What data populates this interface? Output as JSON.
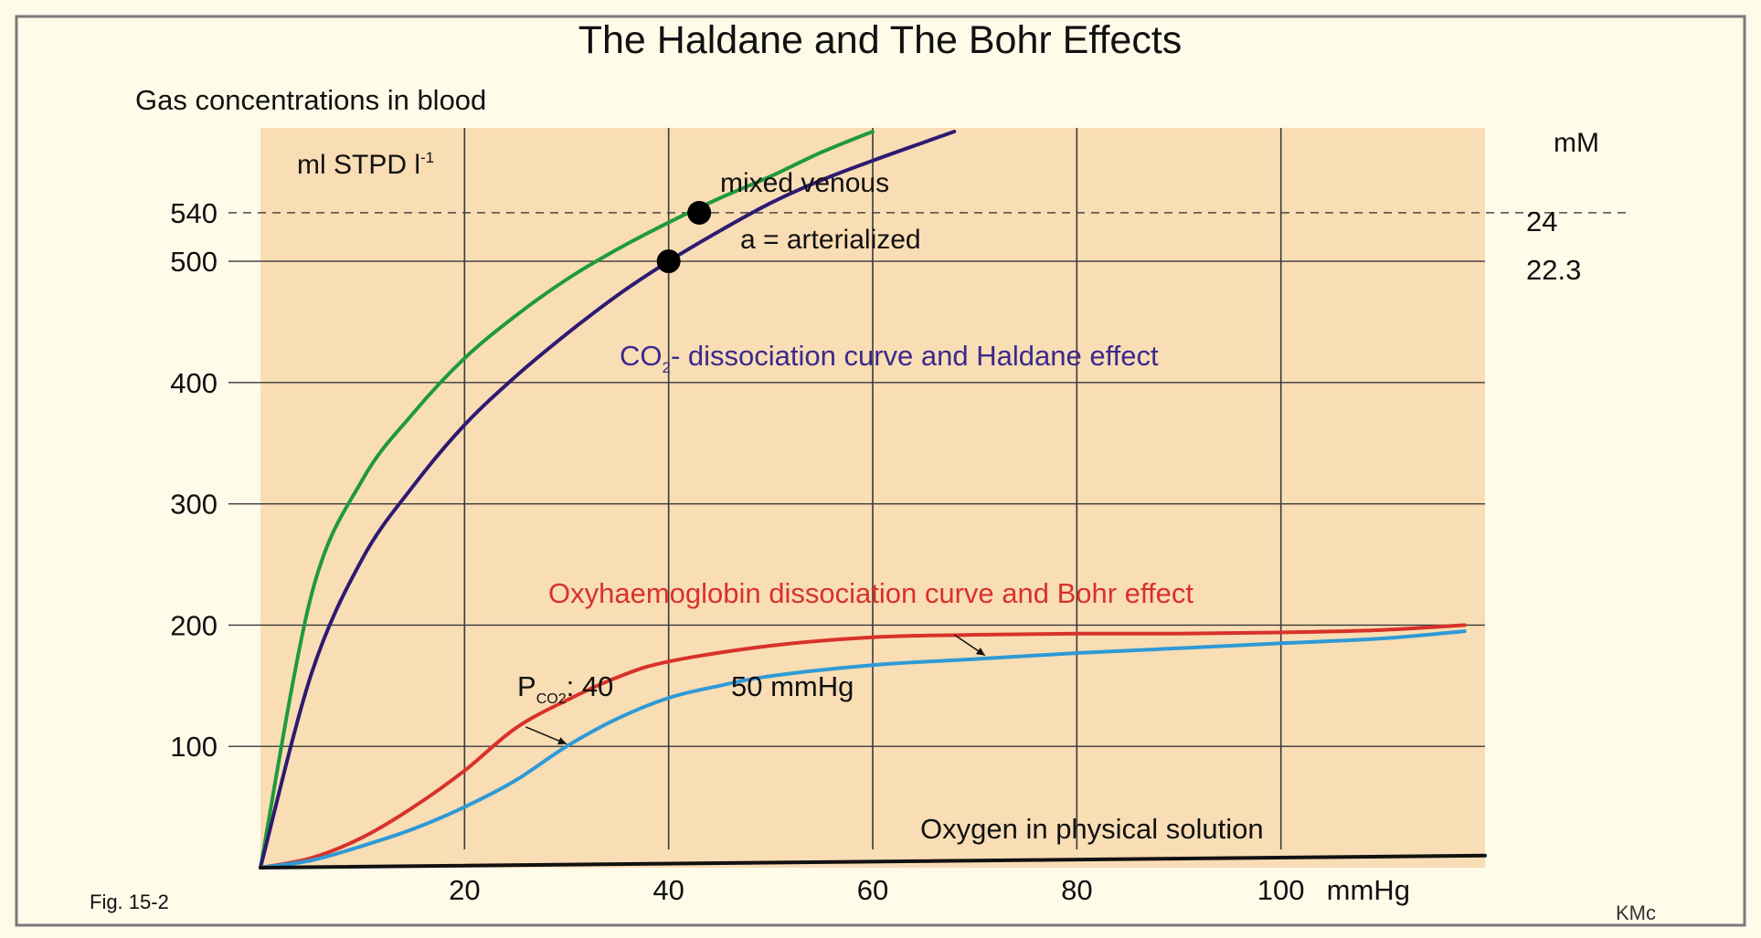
{
  "figure": {
    "title": "The Haldane and The Bohr Effects",
    "y_axis_title": "Gas concentrations in blood",
    "y_unit_left": "ml STPD l",
    "y_unit_left_sup": "-1",
    "y_unit_right": "mM",
    "fig_label": "Fig. 15-2",
    "credit": "KMc"
  },
  "annotations": {
    "mixed_venous": "mixed venous",
    "arterialized": "a = arterialized",
    "co2_curve_pre": "CO",
    "co2_curve_sub": "2",
    "co2_curve_post": "- dissociation curve and Haldane effect",
    "o2_curve": "Oxyhaemoglobin dissociation curve and Bohr effect",
    "pco2_pre": "P",
    "pco2_sub": "CO2",
    "pco2_post": ": 40",
    "pco2_50": "50 mmHg",
    "physical_solution": "Oxygen in physical solution"
  },
  "colors": {
    "panel": "#f9ddb5",
    "grid": "#3a3a3a",
    "green": "#1f9a3c",
    "purple": "#2e1a72",
    "red": "#d8322a",
    "blue": "#2e9ad6",
    "black": "#111111",
    "co2_text": "#3a2a8c",
    "o2_text": "#d8322a"
  },
  "chart_data": {
    "type": "line",
    "xlim": [
      0,
      120
    ],
    "ylim": [
      0,
      610
    ],
    "x_ticks": [
      20,
      40,
      60,
      80,
      100
    ],
    "x_tick_labels": [
      "20",
      "40",
      "60",
      "80",
      "100"
    ],
    "x_unit_label": "mmHg",
    "y_ticks": [
      100,
      200,
      300,
      400,
      500,
      540
    ],
    "y_tick_labels": [
      "100",
      "200",
      "300",
      "400",
      "500",
      "540"
    ],
    "y_right_ticks": [
      500,
      540
    ],
    "y_right_labels": [
      "22.3",
      "24"
    ],
    "grid": true,
    "series": [
      {
        "key": "co2_deoxygenated",
        "color_key": "green",
        "x": [
          0,
          5,
          10,
          15,
          20,
          25,
          30,
          35,
          40,
          45,
          50,
          55,
          60
        ],
        "y": [
          0,
          225,
          320,
          375,
          420,
          455,
          485,
          510,
          532,
          552,
          570,
          590,
          607
        ]
      },
      {
        "key": "co2_oxygenated",
        "color_key": "purple",
        "x": [
          0,
          5,
          10,
          15,
          20,
          25,
          30,
          35,
          40,
          45,
          50,
          55,
          60,
          65,
          68
        ],
        "y": [
          0,
          160,
          255,
          315,
          365,
          405,
          440,
          472,
          500,
          525,
          548,
          567,
          583,
          598,
          607
        ]
      },
      {
        "key": "hbo2_pco2_40",
        "color_key": "red",
        "x": [
          0,
          5,
          10,
          15,
          20,
          25,
          30,
          35,
          40,
          50,
          60,
          70,
          80,
          90,
          100,
          110,
          118
        ],
        "y": [
          0,
          8,
          25,
          50,
          80,
          115,
          138,
          157,
          170,
          183,
          190,
          192,
          193,
          193,
          194,
          196,
          200
        ]
      },
      {
        "key": "hbo2_pco2_50",
        "color_key": "blue",
        "x": [
          0,
          5,
          10,
          15,
          20,
          25,
          30,
          35,
          40,
          45,
          50,
          60,
          70,
          80,
          90,
          100,
          110,
          118
        ],
        "y": [
          0,
          6,
          18,
          32,
          50,
          72,
          100,
          123,
          140,
          150,
          158,
          167,
          172,
          177,
          181,
          185,
          189,
          195
        ]
      },
      {
        "key": "o2_physical_solution",
        "color_key": "black",
        "x": [
          0,
          120
        ],
        "y": [
          0,
          10
        ]
      }
    ],
    "points": [
      {
        "key": "mixed_venous",
        "x": 43,
        "y": 540
      },
      {
        "key": "arterialized",
        "x": 40,
        "y": 500
      }
    ]
  }
}
